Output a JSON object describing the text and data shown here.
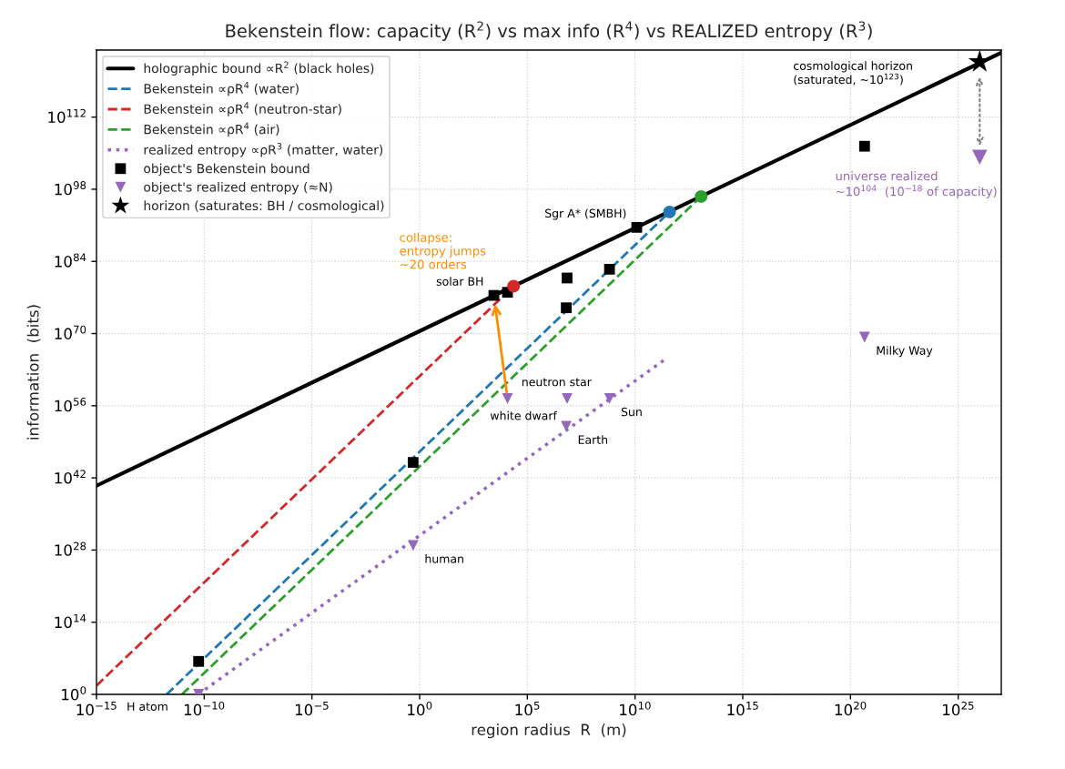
{
  "chart_data": {
    "type": "line",
    "title": "Bekenstein flow: capacity (R$^{2}$) vs max info (R$^{4}$) vs REALIZED entropy (R$^{3}$)",
    "xlabel": "region radius  R  (m)",
    "ylabel": "information  (bits)",
    "log": "xy",
    "xlim": [
      1e-15,
      1e+27
    ],
    "ylim": [
      1,
      1e+125
    ],
    "xticks": [
      {
        "value": 1e-15,
        "label": "10$^{−15}$"
      },
      {
        "value": 1e-10,
        "label": "10$^{−10}$"
      },
      {
        "value": 1e-05,
        "label": "10$^{−5}$"
      },
      {
        "value": 1,
        "label": "10$^{0}$"
      },
      {
        "value": 100000.0,
        "label": "10$^{5}$"
      },
      {
        "value": 10000000000.0,
        "label": "10$^{10}$"
      },
      {
        "value": 1000000000000000.0,
        "label": "10$^{15}$"
      },
      {
        "value": 1e+20,
        "label": "10$^{20}$"
      },
      {
        "value": 1e+25,
        "label": "10$^{25}$"
      }
    ],
    "yticks": [
      {
        "value": 1,
        "label": "10$^{0}$"
      },
      {
        "value": 100000000000000.0,
        "label": "10$^{14}$"
      },
      {
        "value": 1e+28,
        "label": "10$^{28}$"
      },
      {
        "value": 1e+42,
        "label": "10$^{42}$"
      },
      {
        "value": 1e+56,
        "label": "10$^{56}$"
      },
      {
        "value": 1e+70,
        "label": "10$^{70}$"
      },
      {
        "value": 1e+84,
        "label": "10$^{84}$"
      },
      {
        "value": 1e+98,
        "label": "10$^{98}$"
      },
      {
        "value": 1e+112,
        "label": "10$^{112}$"
      }
    ],
    "grid": true,
    "legend": "top left",
    "series": [
      {
        "name": "holographic bound ∝R$^{2}$ (black holes)",
        "line_style": "solid",
        "color": "#000000",
        "x": [
          1e-15,
          1e+27
        ],
        "values": [
          3e+40,
          3e+124
        ]
      },
      {
        "name": "Bekenstein ∝ρR$^{4}$ (water)",
        "line_style": "dashed",
        "color": "#1f77b4",
        "x": [
          1.8e-12,
          400000000000.0
        ],
        "values": [
          1,
          4e+93
        ]
      },
      {
        "name": "Bekenstein ∝ρR$^{4}$ (neutron-star)",
        "line_style": "dashed",
        "color": "#d62728",
        "x": [
          1e-15,
          23000.0
        ],
        "values": [
          50,
          1.6e+79
        ]
      },
      {
        "name": "Bekenstein ∝ρR$^{4}$ (air)",
        "line_style": "dashed",
        "color": "#2ca02c",
        "x": [
          9.3e-12,
          11700000000000.0
        ],
        "values": [
          1,
          4e+96
        ]
      },
      {
        "name": "realized entropy ∝ρR$^{3}$ (matter, water)",
        "line_style": "dotted",
        "color": "#9467bd",
        "x": [
          5.3e-11,
          230000000000.0
        ],
        "values": [
          1,
          8e+64
        ]
      },
      {
        "name": "object's Bekenstein bound",
        "type": "scatter",
        "marker": "square",
        "color": "#000000",
        "x": [
          5.5e-11,
          0.5,
          2800.0,
          12000.0,
          7000000.0,
          6400000.0,
          650000000.0,
          12000000000.0,
          4.5e+20
        ],
        "values": [
          2500000.0,
          1e+45,
          2.5e+77,
          1e+78,
          6e+80,
          1e+75,
          3e+82,
          4e+90,
          2.2e+106
        ]
      },
      {
        "name": "object's realized entropy (≈N)",
        "type": "scatter",
        "marker": "triangle",
        "color": "#9467bd",
        "x": [
          5.5e-11,
          0.5,
          12000.0,
          7000000.0,
          650000000.0,
          6400000.0,
          4.5e+20
        ],
        "values": [
          1,
          8e+28,
          2.5e+57,
          2.5e+57,
          2.5e+57,
          1e+52,
          2e+69
        ]
      },
      {
        "name": "horizon (saturates: BH / cosmological)",
        "type": "scatter",
        "marker": "star",
        "color": "#000000",
        "x": [
          1e+26
        ],
        "values": [
          5e+122
        ]
      },
      {
        "type": "scatter",
        "marker": "triangle",
        "color": "#9467bd",
        "x": [
          1e+26
        ],
        "values": [
          1.6e+104
        ]
      },
      {
        "type": "scatter",
        "marker": "circle",
        "colors": [
          "#1f77b4",
          "#d62728",
          "#2ca02c"
        ],
        "x": [
          400000000000.0,
          23000.0,
          11700000000000.0
        ],
        "values": [
          4e+93,
          1.6e+79,
          4e+96
        ]
      }
    ],
    "annotations": [
      {
        "text": "H atom",
        "x": 5.5e-11,
        "y": 1
      },
      {
        "text": "human",
        "x": 0.5,
        "y": 8e+28
      },
      {
        "text": "neutron star",
        "x": 12000.0,
        "y": 2.5e+57
      },
      {
        "text": "white dwarf",
        "x": 7000000.0,
        "y": 2.5e+57
      },
      {
        "text": "Sun",
        "x": 650000000.0,
        "y": 2.5e+57
      },
      {
        "text": "Earth",
        "x": 6400000.0,
        "y": 1e+52
      },
      {
        "text": "Milky Way",
        "x": 4.5e+20,
        "y": 2e+69
      },
      {
        "text": "solar BH",
        "x": 2800.0,
        "y": 2.5e+77
      },
      {
        "text": "Sgr A* (SMBH)",
        "x": 12000000000.0,
        "y": 4e+90
      },
      "cosmological horizon\n(saturated, ∼10$^{123}$)",
      {
        "text": "universe realized\n∼10$^{104}$  (10$^{−18}$ of capacity)",
        "x": 1e+26,
        "y": 1.6e+104
      },
      "collapse:\nentropy jumps\n~20 orders"
    ]
  }
}
